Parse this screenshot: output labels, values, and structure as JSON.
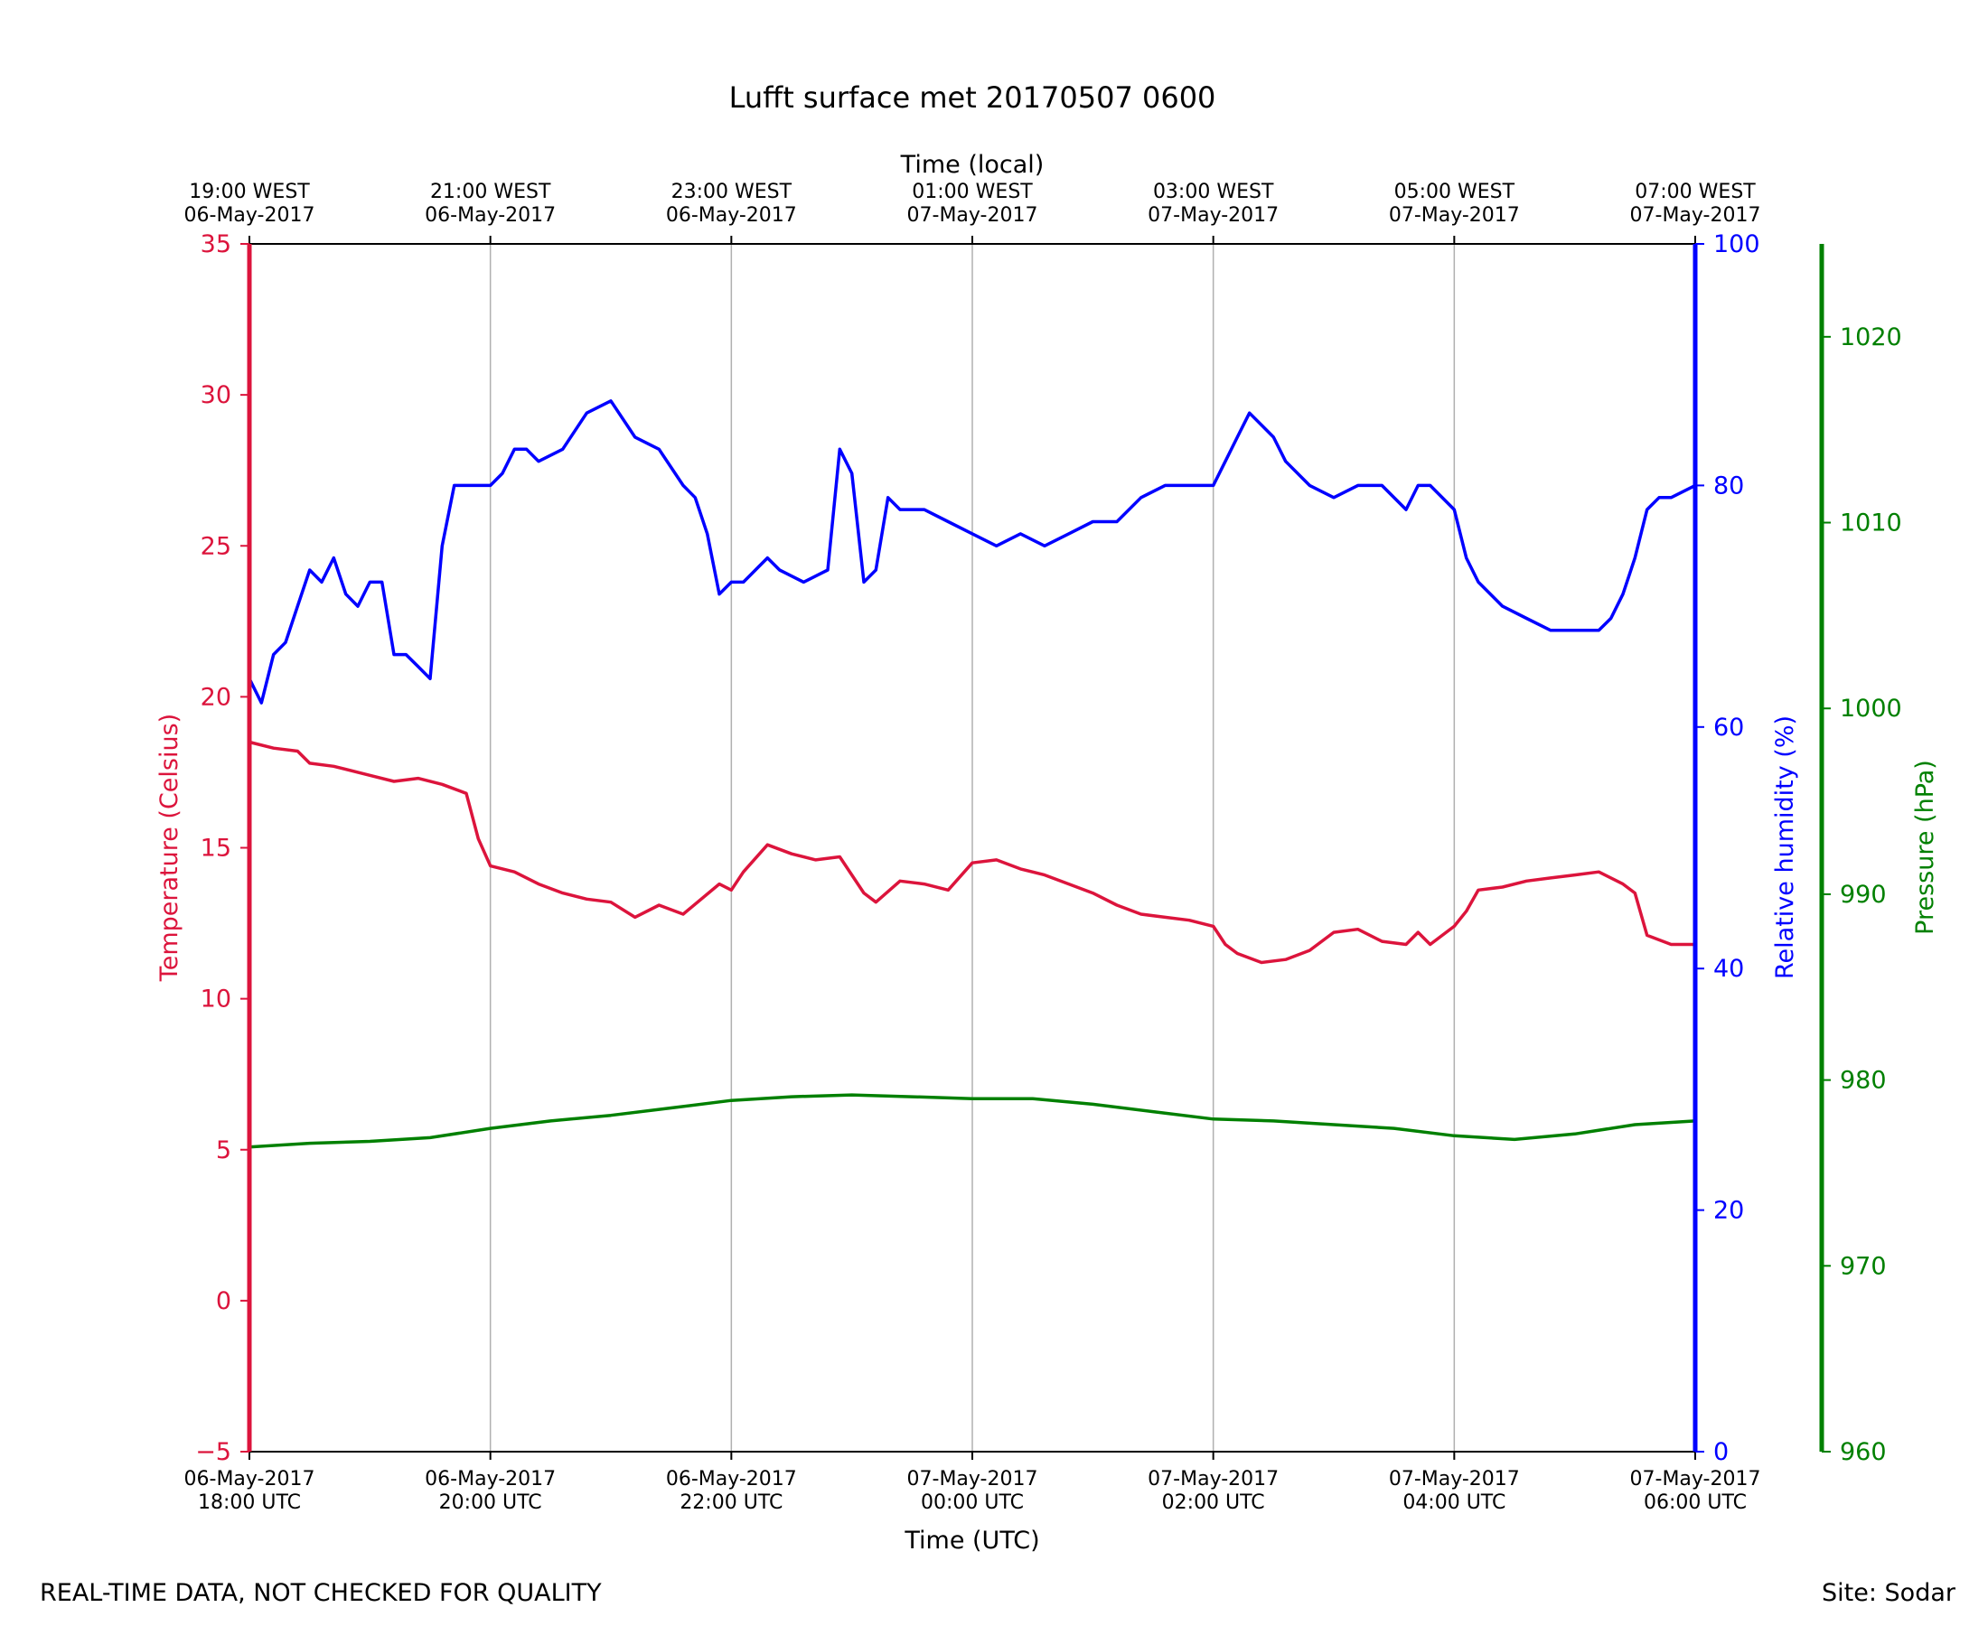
{
  "chart_data": {
    "type": "line",
    "title": "Lufft surface met 20170507 0600",
    "xlabel": "Time (UTC)",
    "x2label": "Time (local)",
    "xlim": [
      0,
      6
    ],
    "x_ticks": [
      {
        "line1": "06-May-2017",
        "line2": "18:00 UTC"
      },
      {
        "line1": "06-May-2017",
        "line2": "20:00 UTC"
      },
      {
        "line1": "06-May-2017",
        "line2": "22:00 UTC"
      },
      {
        "line1": "07-May-2017",
        "line2": "00:00 UTC"
      },
      {
        "line1": "07-May-2017",
        "line2": "02:00 UTC"
      },
      {
        "line1": "07-May-2017",
        "line2": "04:00 UTC"
      },
      {
        "line1": "07-May-2017",
        "line2": "06:00 UTC"
      }
    ],
    "x2_ticks": [
      {
        "line1": "19:00 WEST",
        "line2": "06-May-2017"
      },
      {
        "line1": "21:00 WEST",
        "line2": "06-May-2017"
      },
      {
        "line1": "23:00 WEST",
        "line2": "06-May-2017"
      },
      {
        "line1": "01:00 WEST",
        "line2": "07-May-2017"
      },
      {
        "line1": "03:00 WEST",
        "line2": "07-May-2017"
      },
      {
        "line1": "05:00 WEST",
        "line2": "07-May-2017"
      },
      {
        "line1": "07:00 WEST",
        "line2": "07-May-2017"
      }
    ],
    "grid": "vertical",
    "axes": {
      "temperature": {
        "label": "Temperature (Celsius)",
        "ylim": [
          -5,
          35
        ],
        "ticks": [
          "−5",
          "0",
          "5",
          "10",
          "15",
          "20",
          "25",
          "30",
          "35"
        ],
        "tick_values": [
          -5,
          0,
          5,
          10,
          15,
          20,
          25,
          30,
          35
        ],
        "color": "#dc143c",
        "side": "left"
      },
      "humidity": {
        "label": "Relative humidity (%)",
        "ylim": [
          0,
          100
        ],
        "ticks": [
          "0",
          "20",
          "40",
          "60",
          "80",
          "100"
        ],
        "tick_values": [
          0,
          20,
          40,
          60,
          80,
          100
        ],
        "color": "#0000ff",
        "side": "right"
      },
      "pressure": {
        "label": "Pressure (hPa)",
        "ylim": [
          960,
          1025
        ],
        "ticks": [
          "960",
          "970",
          "980",
          "990",
          "1000",
          "1010",
          "1020"
        ],
        "tick_values": [
          960,
          970,
          980,
          990,
          1000,
          1010,
          1020
        ],
        "color": "#008000",
        "side": "right-offset"
      }
    },
    "series": [
      {
        "axis": "temperature",
        "color": "#dc143c",
        "x": [
          0,
          0.1,
          0.2,
          0.25,
          0.35,
          0.5,
          0.6,
          0.7,
          0.8,
          0.9,
          0.95,
          1,
          1.1,
          1.2,
          1.3,
          1.4,
          1.5,
          1.6,
          1.7,
          1.8,
          1.95,
          2,
          2.05,
          2.15,
          2.25,
          2.35,
          2.45,
          2.55,
          2.6,
          2.7,
          2.8,
          2.9,
          3,
          3.1,
          3.2,
          3.3,
          3.4,
          3.5,
          3.6,
          3.7,
          3.8,
          3.9,
          4,
          4.05,
          4.1,
          4.2,
          4.3,
          4.4,
          4.5,
          4.6,
          4.7,
          4.8,
          4.85,
          4.9,
          5,
          5.05,
          5.1,
          5.2,
          5.3,
          5.4,
          5.5,
          5.6,
          5.7,
          5.75,
          5.8,
          5.9,
          6
        ],
        "values": [
          18.5,
          18.3,
          18.2,
          17.8,
          17.7,
          17.4,
          17.2,
          17.3,
          17.1,
          16.8,
          15.3,
          14.4,
          14.2,
          13.8,
          13.5,
          13.3,
          13.2,
          12.7,
          13.1,
          12.8,
          13.8,
          13.6,
          14.2,
          15.1,
          14.8,
          14.6,
          14.7,
          13.5,
          13.2,
          13.9,
          13.8,
          13.6,
          14.5,
          14.6,
          14.3,
          14.1,
          13.8,
          13.5,
          13.1,
          12.8,
          12.7,
          12.6,
          12.4,
          11.8,
          11.5,
          11.2,
          11.3,
          11.6,
          12.2,
          12.3,
          11.9,
          11.8,
          12.2,
          11.8,
          12.4,
          12.9,
          13.6,
          13.7,
          13.9,
          14.0,
          14.1,
          14.2,
          13.8,
          13.5,
          12.1,
          11.8,
          11.8
        ]
      },
      {
        "axis": "humidity",
        "color": "#0000ff",
        "x": [
          0,
          0.05,
          0.1,
          0.15,
          0.2,
          0.25,
          0.3,
          0.35,
          0.4,
          0.45,
          0.5,
          0.55,
          0.6,
          0.65,
          0.7,
          0.75,
          0.8,
          0.85,
          0.9,
          0.95,
          1,
          1.05,
          1.1,
          1.15,
          1.2,
          1.3,
          1.4,
          1.5,
          1.6,
          1.7,
          1.8,
          1.85,
          1.9,
          1.95,
          2,
          2.05,
          2.1,
          2.15,
          2.2,
          2.3,
          2.4,
          2.45,
          2.5,
          2.55,
          2.6,
          2.65,
          2.7,
          2.8,
          2.9,
          3,
          3.1,
          3.2,
          3.3,
          3.4,
          3.5,
          3.6,
          3.7,
          3.8,
          3.9,
          4,
          4.05,
          4.1,
          4.15,
          4.2,
          4.25,
          4.3,
          4.4,
          4.5,
          4.6,
          4.7,
          4.8,
          4.85,
          4.9,
          5,
          5.05,
          5.1,
          5.2,
          5.3,
          5.4,
          5.5,
          5.6,
          5.65,
          5.7,
          5.75,
          5.8,
          5.85,
          5.9,
          6
        ],
        "values": [
          64,
          62,
          66,
          67,
          70,
          73,
          72,
          74,
          71,
          70,
          72,
          72,
          66,
          66,
          65,
          64,
          75,
          80,
          80,
          80,
          80,
          81,
          83,
          83,
          82,
          83,
          86,
          87,
          84,
          83,
          80,
          79,
          76,
          71,
          72,
          72,
          73,
          74,
          73,
          72,
          73,
          83,
          81,
          72,
          73,
          79,
          78,
          78,
          77,
          76,
          75,
          76,
          75,
          76,
          77,
          77,
          79,
          80,
          80,
          80,
          82,
          84,
          86,
          85,
          84,
          82,
          80,
          79,
          80,
          80,
          78,
          80,
          80,
          78,
          74,
          72,
          70,
          69,
          68,
          68,
          68,
          69,
          71,
          74,
          78,
          79,
          79,
          80
        ]
      },
      {
        "axis": "pressure",
        "color": "#008000",
        "x": [
          0,
          0.25,
          0.5,
          0.75,
          1,
          1.25,
          1.5,
          1.75,
          2,
          2.25,
          2.5,
          2.75,
          3,
          3.25,
          3.5,
          3.75,
          4,
          4.25,
          4.5,
          4.75,
          5,
          5.25,
          5.5,
          5.75,
          6
        ],
        "values": [
          976.4,
          976.6,
          976.7,
          976.9,
          977.4,
          977.8,
          978.1,
          978.5,
          978.9,
          979.1,
          979.2,
          979.1,
          979.0,
          979.0,
          978.7,
          978.3,
          977.9,
          977.8,
          977.6,
          977.4,
          977.0,
          976.8,
          977.1,
          977.6,
          977.8
        ]
      }
    ]
  },
  "footer": {
    "left": "REAL-TIME DATA, NOT CHECKED FOR QUALITY",
    "right": "Site: Sodar"
  }
}
